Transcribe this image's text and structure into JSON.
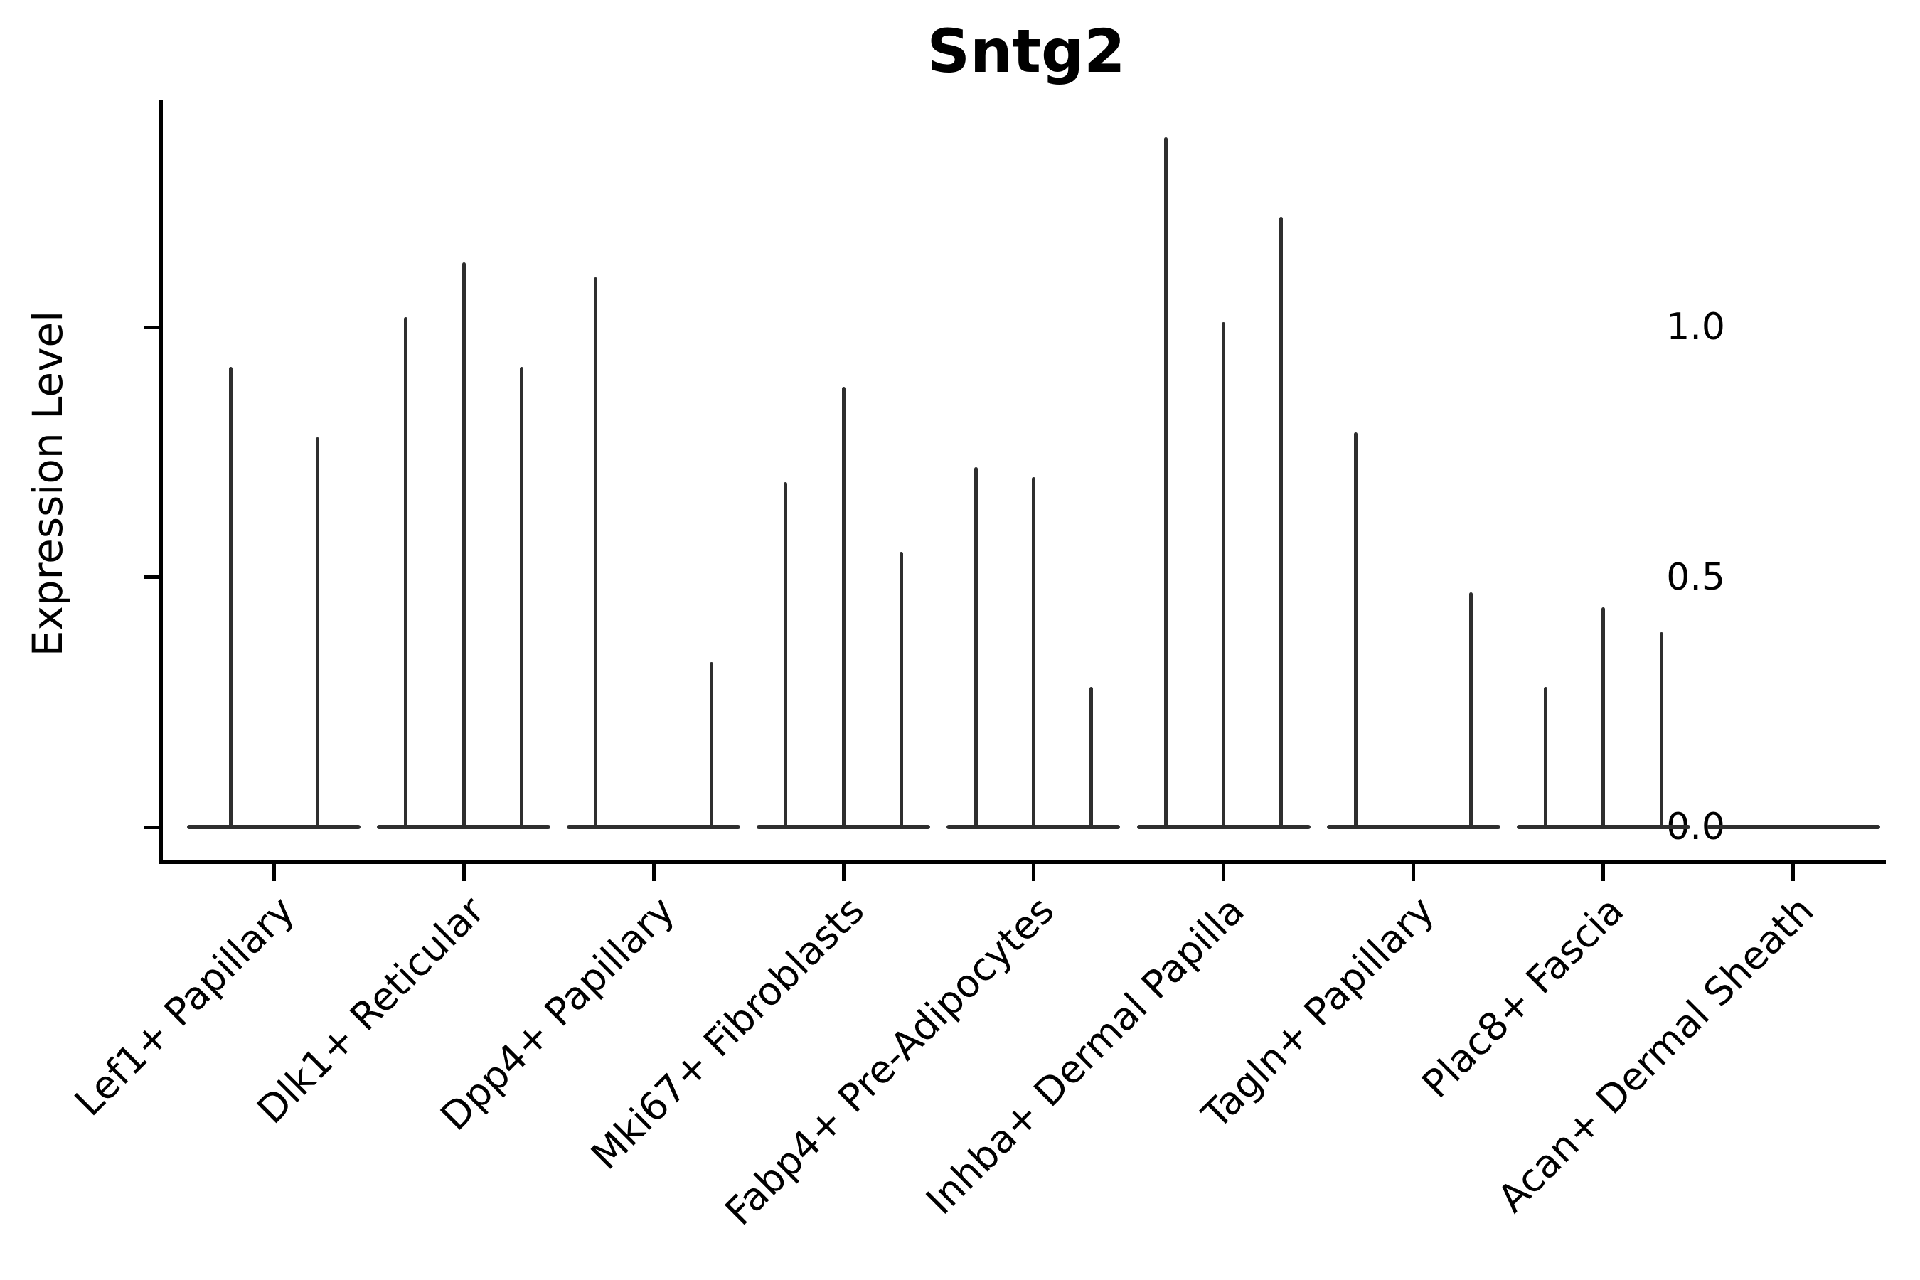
{
  "chart_data": {
    "type": "violin",
    "title": "Sntg2",
    "ylabel": "Expression Level",
    "xlabel": "",
    "legend": "none",
    "grid": "off",
    "background": "#ffffff",
    "ylim": [
      -0.07,
      1.46
    ],
    "y_tick_values": [
      0.0,
      0.5,
      1.0
    ],
    "y_tick_labels": [
      "0.0",
      "0.5",
      "1.0"
    ],
    "categories": [
      "Lef1+ Papillary",
      "Dlk1+ Reticular",
      "Dpp4+ Papillary",
      "Mki67+ Fibroblasts",
      "Fabp4+ Pre-Adipocytes",
      "Inhba+ Dermal Papilla",
      "Tagln+ Papillary",
      "Plac8+ Fascia",
      "Acan+ Dermal Sheath"
    ],
    "groups": [
      {
        "category": "Lef1+ Papillary",
        "violin_peaks": [
          0.92,
          0.78
        ]
      },
      {
        "category": "Dlk1+ Reticular",
        "violin_peaks": [
          1.02,
          1.13,
          0.92
        ]
      },
      {
        "category": "Dpp4+ Papillary",
        "violin_peaks": [
          1.1,
          0.0,
          0.33
        ]
      },
      {
        "category": "Mki67+ Fibroblasts",
        "violin_peaks": [
          0.69,
          0.88,
          0.55
        ]
      },
      {
        "category": "Fabp4+ Pre-Adipocytes",
        "violin_peaks": [
          0.72,
          0.7,
          0.28
        ]
      },
      {
        "category": "Inhba+ Dermal Papilla",
        "violin_peaks": [
          1.38,
          1.01,
          1.22
        ]
      },
      {
        "category": "Tagln+ Papillary",
        "violin_peaks": [
          0.79,
          0.0,
          0.47
        ]
      },
      {
        "category": "Plac8+ Fascia",
        "violin_peaks": [
          0.28,
          0.44,
          0.39
        ]
      },
      {
        "category": "Acan+ Dermal Sheath",
        "violin_peaks": [
          0.0,
          0.0,
          0.0
        ]
      }
    ],
    "notes": "Thin needle-like violins sitting on flat bases at expression 0; peak value is top of each spike; violins with peak 0 are flat (no spike).",
    "style": {
      "violin_color": "#2e2e2e",
      "axis_color": "#000000",
      "text_color": "#000000"
    }
  }
}
